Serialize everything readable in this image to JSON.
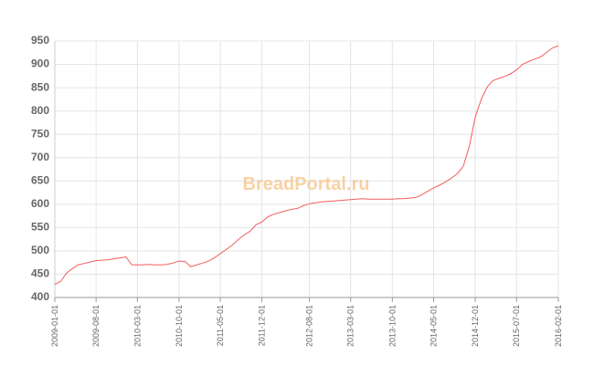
{
  "chart_data": {
    "type": "line",
    "watermark": "BreadPortal.ru",
    "x": [
      "2009-01-01",
      "2009-02-01",
      "2009-03-01",
      "2009-04-01",
      "2009-05-01",
      "2009-06-01",
      "2009-07-01",
      "2009-08-01",
      "2009-09-01",
      "2009-10-01",
      "2009-11-01",
      "2009-12-01",
      "2010-01-01",
      "2010-02-01",
      "2010-03-01",
      "2010-04-01",
      "2010-05-01",
      "2010-06-01",
      "2010-07-01",
      "2010-08-01",
      "2010-09-01",
      "2010-10-01",
      "2010-11-01",
      "2010-12-01",
      "2011-01-01",
      "2011-02-01",
      "2011-03-01",
      "2011-04-01",
      "2011-05-01",
      "2011-06-01",
      "2011-07-01",
      "2011-08-01",
      "2011-09-01",
      "2011-10-01",
      "2011-11-01",
      "2011-12-01",
      "2012-01-01",
      "2012-02-01",
      "2012-03-01",
      "2012-04-01",
      "2012-05-01",
      "2012-06-01",
      "2012-07-01",
      "2012-08-01",
      "2012-09-01",
      "2012-10-01",
      "2012-11-01",
      "2012-12-01",
      "2013-01-01",
      "2013-02-01",
      "2013-03-01",
      "2013-04-01",
      "2013-05-01",
      "2013-06-01",
      "2013-07-01",
      "2013-08-01",
      "2013-09-01",
      "2013-10-01",
      "2013-11-01",
      "2013-12-01",
      "2014-01-01",
      "2014-02-01",
      "2014-03-01",
      "2014-04-01",
      "2014-05-01",
      "2014-06-01",
      "2014-07-01",
      "2014-08-01",
      "2014-09-01",
      "2014-10-01",
      "2014-11-01",
      "2014-12-01",
      "2015-01-01",
      "2015-02-01",
      "2015-03-01",
      "2015-04-01",
      "2015-05-01",
      "2015-06-01",
      "2015-07-01",
      "2015-08-01",
      "2015-09-01",
      "2015-10-01",
      "2015-11-01",
      "2015-12-01",
      "2016-01-01",
      "2016-02-01"
    ],
    "series": [
      {
        "color": "#f25c5c",
        "values": [
          428,
          435,
          452,
          462,
          470,
          473,
          476,
          479,
          480,
          481,
          483,
          485,
          487,
          470,
          470,
          470,
          471,
          470,
          470,
          471,
          474,
          478,
          477,
          466,
          470,
          474,
          478,
          485,
          494,
          503,
          512,
          524,
          534,
          542,
          556,
          562,
          573,
          579,
          582,
          586,
          589,
          591,
          597,
          601,
          603,
          605,
          606,
          607,
          608,
          609,
          610,
          611,
          612,
          611,
          611,
          611,
          611,
          611,
          612,
          612,
          613,
          615,
          620,
          628,
          635,
          641,
          648,
          656,
          666,
          682,
          725,
          787,
          825,
          852,
          865,
          870,
          874,
          880,
          888,
          900,
          906,
          911,
          916,
          925,
          935,
          940
        ]
      }
    ],
    "xlim": [
      "2009-01-01",
      "2016-02-01"
    ],
    "xticks": [
      "2009-01-01",
      "2009-08-01",
      "2010-03-01",
      "2010-10-01",
      "2011-05-01",
      "2011-12-01",
      "2012-08-01",
      "2013-03-01",
      "2013-10-01",
      "2014-05-01",
      "2014-12-01",
      "2015-07-01",
      "2016-02-01"
    ],
    "ylim": [
      400,
      950
    ],
    "yticks": [
      400,
      450,
      500,
      550,
      600,
      650,
      700,
      750,
      800,
      850,
      900,
      950
    ],
    "grid": true
  }
}
